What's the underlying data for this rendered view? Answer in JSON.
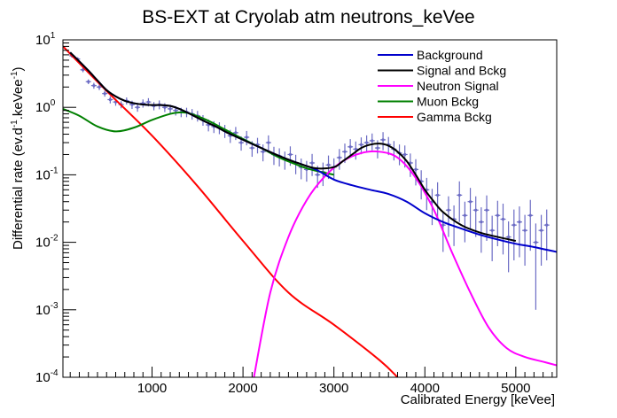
{
  "chart_data": {
    "type": "line",
    "title": "BS-EXT at Cryolab atm neutrons_keVee",
    "xlabel": "Calibrated Energy [keVee]",
    "ylabel_main": "Differential rate (ev.d",
    "ylabel_exp1": "-1",
    "ylabel_mid": ".keVee",
    "ylabel_exp2": "-1",
    "ylabel_end": ")",
    "xlim": [
      20,
      5450
    ],
    "ylim_log10": [
      -4,
      1
    ],
    "y_scale": "log",
    "x_ticks": [
      {
        "value": 1000,
        "label": "1000"
      },
      {
        "value": 2000,
        "label": "2000"
      },
      {
        "value": 3000,
        "label": "3000"
      },
      {
        "value": 4000,
        "label": "4000"
      },
      {
        "value": 5000,
        "label": "5000"
      }
    ],
    "y_ticks": [
      {
        "exp": 1,
        "base": "10",
        "sup": "1"
      },
      {
        "exp": 0,
        "base": "10",
        "sup": "0"
      },
      {
        "exp": -1,
        "base": "10",
        "sup": "-1"
      },
      {
        "exp": -2,
        "base": "10",
        "sup": "-2"
      },
      {
        "exp": -3,
        "base": "10",
        "sup": "-3"
      },
      {
        "exp": -4,
        "base": "10",
        "sup": "-4"
      }
    ],
    "legend": {
      "position": "top-right",
      "entries": [
        {
          "label": "Background",
          "color": "#0000cc"
        },
        {
          "label": "Signal and Bckg",
          "color": "#000000"
        },
        {
          "label": "Neutron Signal",
          "color": "#ff00ff"
        },
        {
          "label": "Muon Bckg",
          "color": "#008000"
        },
        {
          "label": "Gamma Bckg",
          "color": "#ff0000"
        }
      ]
    },
    "series": [
      {
        "name": "Background",
        "color": "#0000cc",
        "x": [
          100,
          200,
          300,
          400,
          500,
          600,
          700,
          800,
          900,
          1000,
          1100,
          1200,
          1300,
          1400,
          1500,
          1600,
          1700,
          1800,
          1900,
          2000,
          2200,
          2400,
          2600,
          2800,
          3000,
          3200,
          3400,
          3600,
          3800,
          4000,
          4200,
          4400,
          4600,
          4800,
          5000,
          5200,
          5450
        ],
        "y": [
          6.5,
          4.8,
          3.5,
          2.5,
          1.8,
          1.45,
          1.25,
          1.15,
          1.1,
          1.08,
          1.08,
          1.05,
          0.95,
          0.82,
          0.7,
          0.6,
          0.52,
          0.44,
          0.38,
          0.33,
          0.25,
          0.19,
          0.15,
          0.12,
          0.085,
          0.07,
          0.06,
          0.052,
          0.04,
          0.027,
          0.02,
          0.016,
          0.013,
          0.011,
          0.0095,
          0.0085,
          0.0072
        ]
      },
      {
        "name": "Signal and Bckg",
        "color": "#000000",
        "x": [
          100,
          200,
          300,
          400,
          500,
          600,
          700,
          800,
          900,
          1000,
          1100,
          1200,
          1300,
          1400,
          1500,
          1600,
          1700,
          1800,
          1900,
          2000,
          2200,
          2400,
          2600,
          2800,
          3000,
          3100,
          3200,
          3300,
          3400,
          3500,
          3600,
          3700,
          3800,
          3900,
          4000,
          4100,
          4200,
          4400,
          4600,
          4800,
          5000
        ],
        "y": [
          6.5,
          4.8,
          3.5,
          2.5,
          1.8,
          1.45,
          1.25,
          1.15,
          1.1,
          1.08,
          1.08,
          1.05,
          0.95,
          0.82,
          0.7,
          0.6,
          0.52,
          0.44,
          0.38,
          0.33,
          0.25,
          0.19,
          0.15,
          0.125,
          0.13,
          0.16,
          0.2,
          0.25,
          0.28,
          0.29,
          0.27,
          0.22,
          0.16,
          0.1,
          0.06,
          0.04,
          0.028,
          0.018,
          0.014,
          0.012,
          0.0105
        ]
      },
      {
        "name": "Neutron Signal",
        "color": "#ff00ff",
        "x": [
          2120,
          2300,
          2500,
          2700,
          2900,
          3100,
          3300,
          3500,
          3700,
          3900,
          4100,
          4300,
          4500,
          4700,
          4900,
          5100,
          5300,
          5450
        ],
        "y": [
          0.0001,
          0.0018,
          0.012,
          0.042,
          0.095,
          0.16,
          0.21,
          0.22,
          0.18,
          0.09,
          0.03,
          0.007,
          0.0018,
          0.00055,
          0.00027,
          0.0002,
          0.00017,
          0.00015
        ]
      },
      {
        "name": "Muon Bckg",
        "color": "#008000",
        "x": [
          20,
          200,
          400,
          600,
          800,
          1000,
          1200,
          1300,
          1400,
          1600,
          1800,
          2000,
          2200,
          2400,
          2600,
          2700,
          2800,
          3000
        ],
        "y": [
          0.95,
          0.75,
          0.52,
          0.44,
          0.5,
          0.65,
          0.8,
          0.84,
          0.82,
          0.65,
          0.47,
          0.34,
          0.25,
          0.18,
          0.14,
          0.125,
          0.115,
          0.1
        ]
      },
      {
        "name": "Gamma Bckg",
        "color": "#ff0000",
        "x": [
          20,
          500,
          1000,
          1500,
          2000,
          2500,
          3000,
          3500,
          3700
        ],
        "y": [
          8.0,
          1.75,
          0.38,
          0.068,
          0.0105,
          0.0018,
          0.0006,
          0.00018,
          0.0001
        ]
      }
    ],
    "data_points": {
      "name": "Data",
      "color": "#6b6bc4",
      "x": [
        120,
        180,
        240,
        300,
        360,
        420,
        480,
        540,
        600,
        660,
        720,
        780,
        840,
        900,
        960,
        1020,
        1080,
        1140,
        1200,
        1260,
        1320,
        1380,
        1440,
        1500,
        1560,
        1620,
        1680,
        1740,
        1800,
        1860,
        1920,
        1980,
        2040,
        2100,
        2160,
        2220,
        2280,
        2340,
        2400,
        2460,
        2520,
        2580,
        2640,
        2700,
        2760,
        2820,
        2880,
        2940,
        3000,
        3060,
        3120,
        3180,
        3240,
        3300,
        3360,
        3420,
        3480,
        3540,
        3600,
        3660,
        3720,
        3780,
        3840,
        3900,
        3960,
        4020,
        4080,
        4140,
        4200,
        4260,
        4320,
        4380,
        4440,
        4500,
        4560,
        4620,
        4680,
        4740,
        4800,
        4860,
        4920,
        4980,
        5040,
        5100,
        5160,
        5220,
        5280,
        5340
      ],
      "y": [
        5.8,
        5.2,
        3.6,
        2.4,
        2.1,
        2.0,
        1.6,
        1.3,
        1.2,
        1.1,
        1.25,
        1.1,
        1.0,
        1.15,
        1.2,
        1.05,
        1.1,
        1.0,
        0.95,
        0.9,
        0.85,
        0.85,
        0.8,
        0.75,
        0.65,
        0.55,
        0.52,
        0.5,
        0.45,
        0.38,
        0.42,
        0.3,
        0.36,
        0.25,
        0.28,
        0.22,
        0.3,
        0.2,
        0.19,
        0.17,
        0.2,
        0.15,
        0.13,
        0.12,
        0.15,
        0.1,
        0.11,
        0.14,
        0.13,
        0.18,
        0.22,
        0.26,
        0.24,
        0.28,
        0.3,
        0.32,
        0.25,
        0.33,
        0.28,
        0.24,
        0.21,
        0.2,
        0.15,
        0.12,
        0.08,
        0.06,
        0.04,
        0.05,
        0.018,
        0.03,
        0.022,
        0.05,
        0.025,
        0.04,
        0.03,
        0.02,
        0.03,
        0.015,
        0.025,
        0.022,
        0.012,
        0.018,
        0.02,
        0.015,
        0.025,
        0.01,
        0.015,
        0.018
      ],
      "rel_err": [
        0.06,
        0.06,
        0.08,
        0.08,
        0.1,
        0.1,
        0.1,
        0.12,
        0.12,
        0.12,
        0.12,
        0.14,
        0.14,
        0.14,
        0.14,
        0.14,
        0.15,
        0.15,
        0.15,
        0.16,
        0.16,
        0.16,
        0.18,
        0.18,
        0.18,
        0.2,
        0.2,
        0.2,
        0.22,
        0.22,
        0.22,
        0.24,
        0.24,
        0.26,
        0.26,
        0.28,
        0.28,
        0.3,
        0.3,
        0.3,
        0.32,
        0.32,
        0.34,
        0.34,
        0.36,
        0.36,
        0.38,
        0.38,
        0.35,
        0.34,
        0.32,
        0.3,
        0.3,
        0.28,
        0.28,
        0.28,
        0.3,
        0.3,
        0.3,
        0.32,
        0.34,
        0.36,
        0.38,
        0.42,
        0.46,
        0.5,
        0.55,
        0.55,
        0.6,
        0.6,
        0.6,
        0.6,
        0.6,
        0.6,
        0.6,
        0.65,
        0.65,
        0.65,
        0.65,
        0.7,
        0.7,
        0.7,
        0.7,
        0.7,
        0.7,
        0.9,
        0.7,
        0.7
      ]
    }
  }
}
